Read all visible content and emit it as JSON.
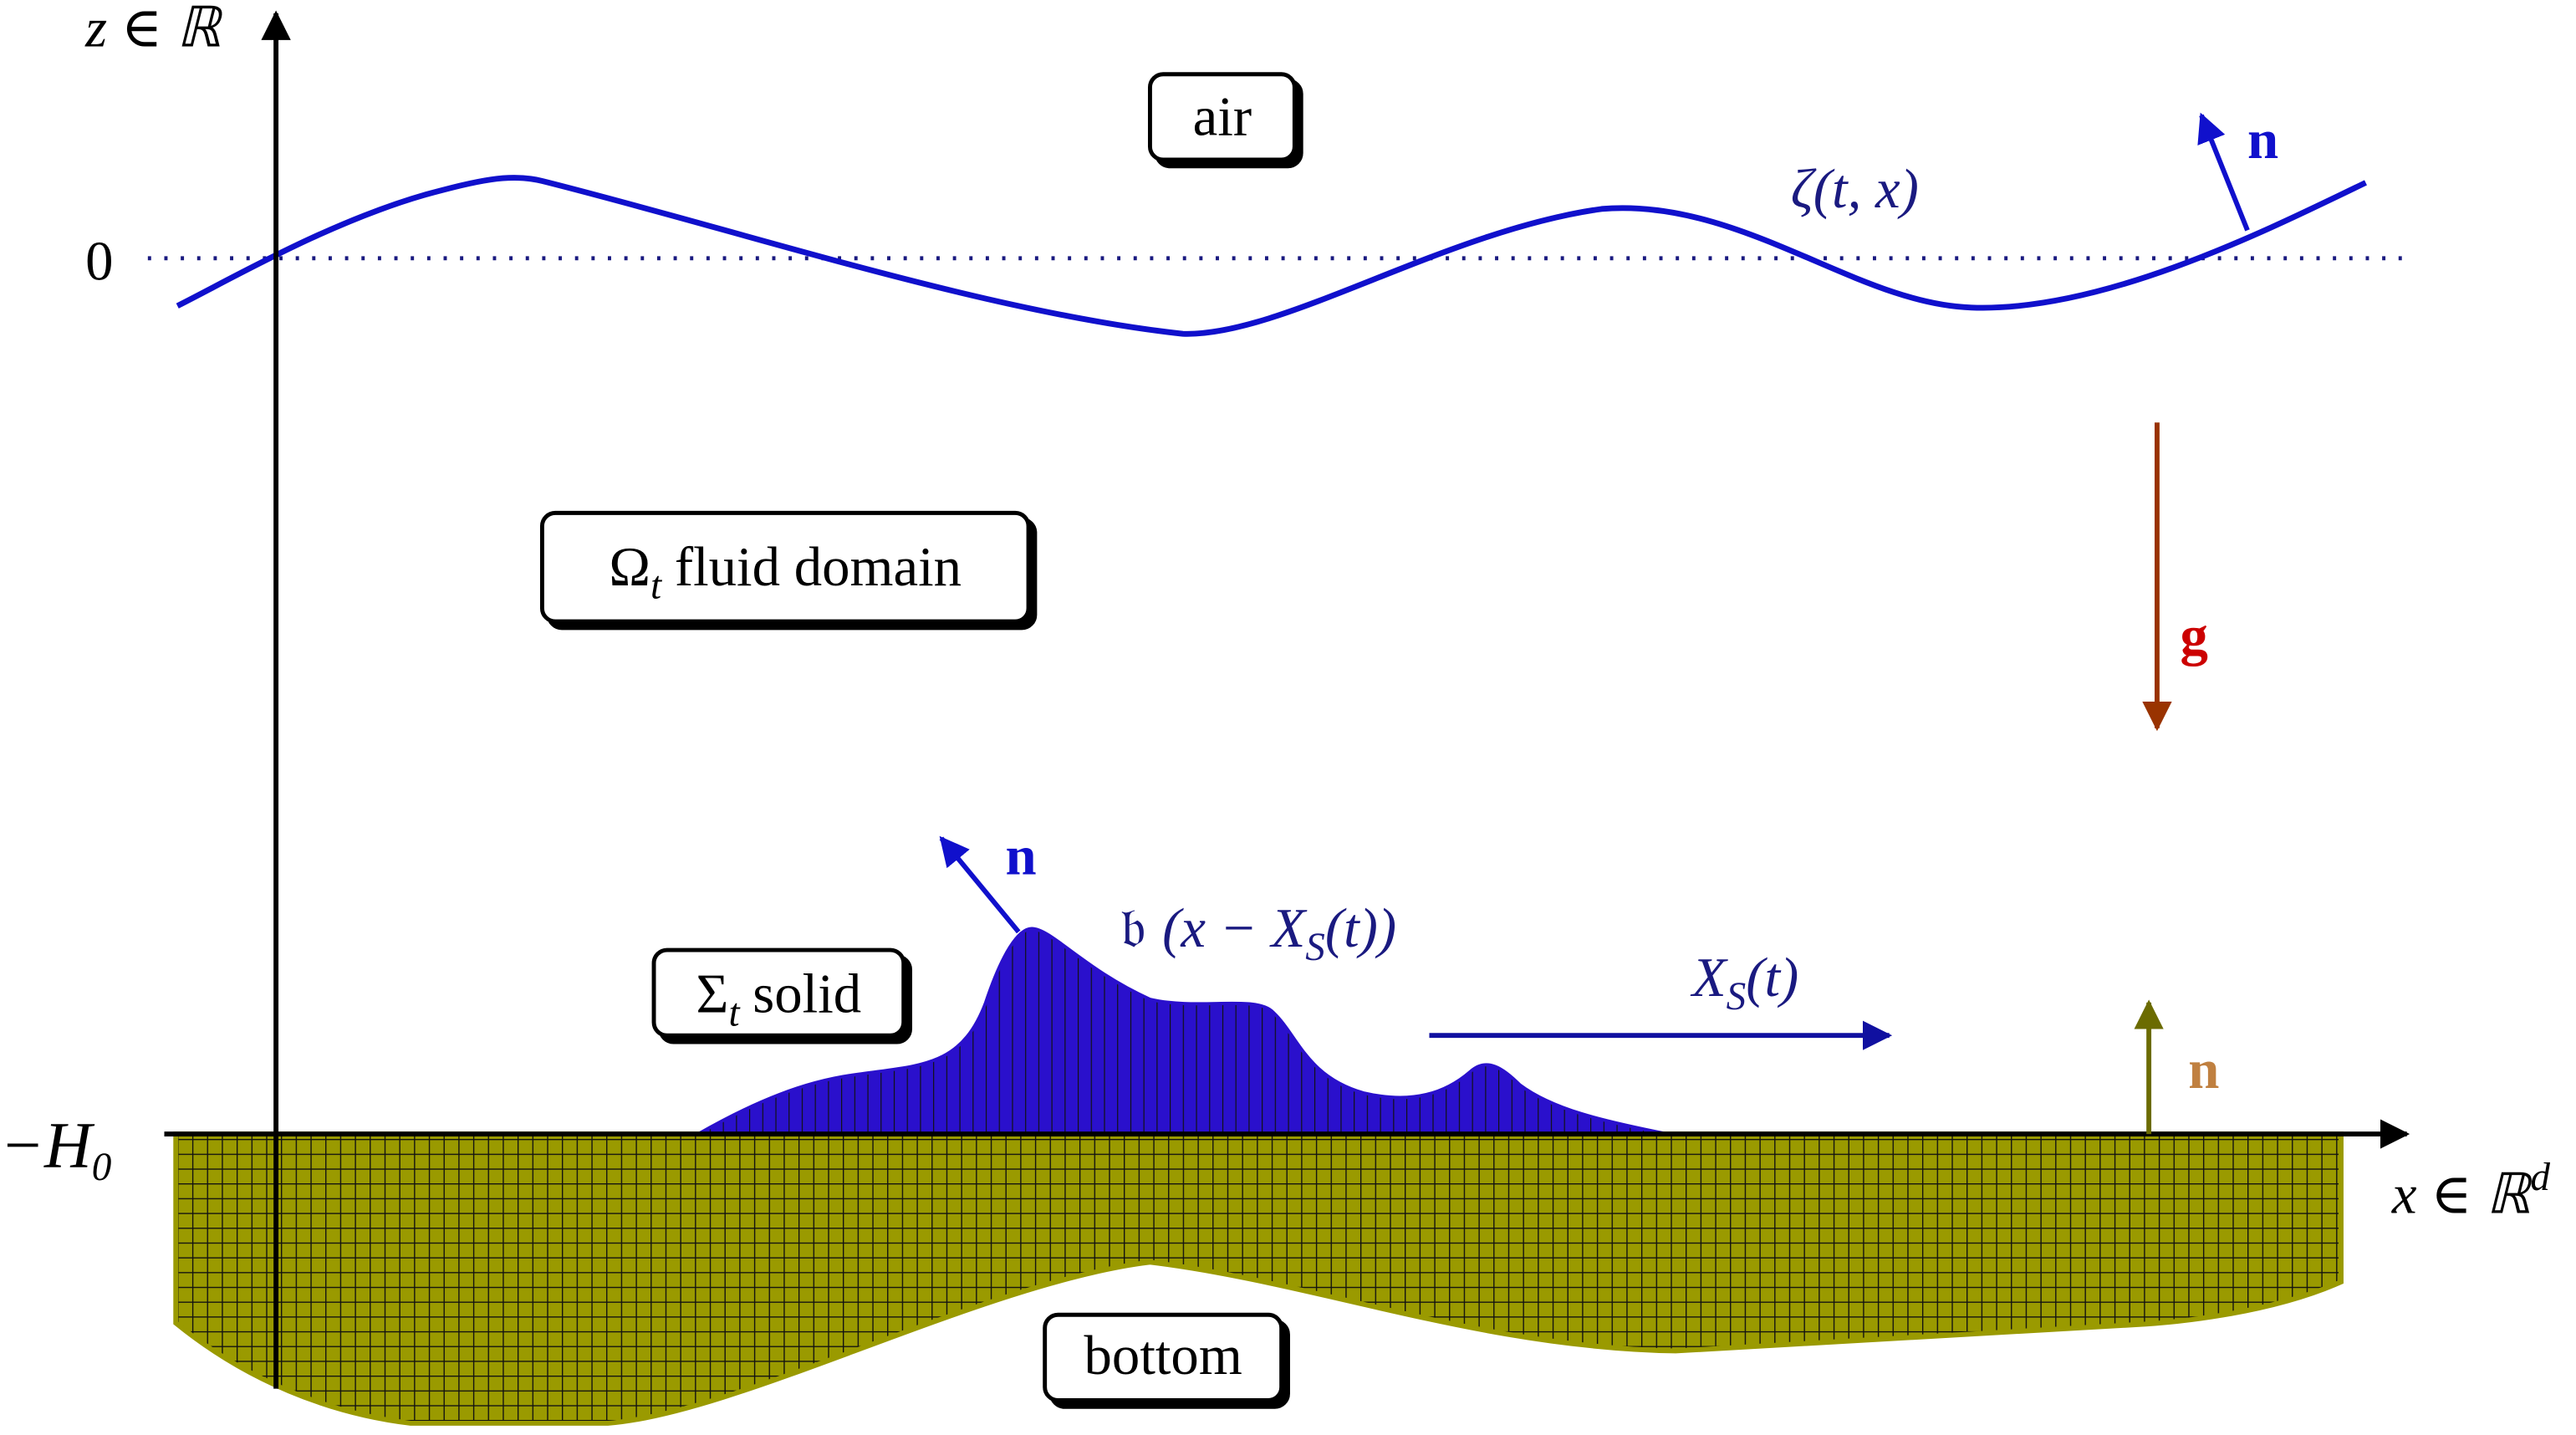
{
  "axes": {
    "vertical": "z ∈ ℝ",
    "horizontal": {
      "symbol": "x ∈ ℝ",
      "superscript": "d"
    },
    "zero_level": "0",
    "depth": {
      "symbol": "−H",
      "subscript": "0"
    }
  },
  "regions": {
    "air": "air",
    "fluid": {
      "symbol": "Ω",
      "subscript": "t",
      "text": "fluid domain"
    },
    "solid": {
      "symbol": "Σ",
      "subscript": "t",
      "text": "solid"
    },
    "bottom": "bottom"
  },
  "surface_label": "ζ(t, x)",
  "solid_profile": {
    "symbol": "𝔟",
    "open": "(x − X",
    "subscript": "S",
    "close": "(t))"
  },
  "solid_motion": {
    "symbol": "X",
    "subscript": "S",
    "close": "(t)"
  },
  "gravity": "g",
  "normals": [
    "n",
    "n",
    "n"
  ]
}
